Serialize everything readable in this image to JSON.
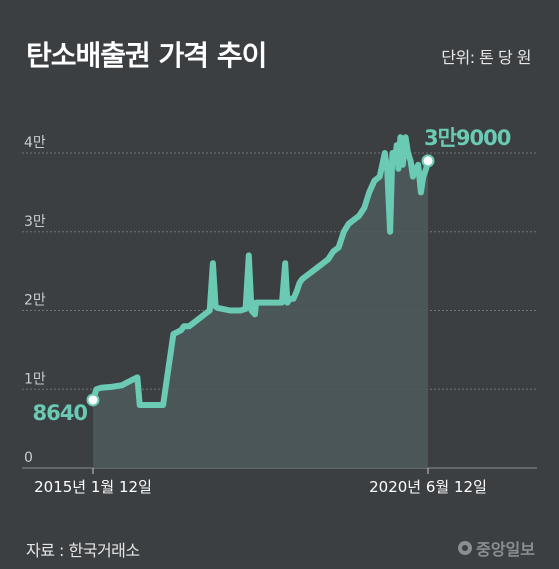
{
  "header": {
    "title": "탄소배출권 가격 추이",
    "unit": "단위: 톤 당 원"
  },
  "footer": {
    "source": "자료 : 한국거래소",
    "logo": "중앙일보"
  },
  "colors": {
    "line": "#6bcab4",
    "area": "#4e5a5c",
    "background": "#3b3f42",
    "grid": "#6f7376"
  },
  "chart_data": {
    "type": "area",
    "title": "탄소배출권 가격 추이",
    "xlabel": "",
    "ylabel": "",
    "ylim": [
      0,
      40000
    ],
    "xlim": [
      "2015-01-12",
      "2020-06-12"
    ],
    "y_ticks": [
      {
        "value": 0,
        "label": "0"
      },
      {
        "value": 10000,
        "label": "1만"
      },
      {
        "value": 20000,
        "label": "2만"
      },
      {
        "value": 30000,
        "label": "3만"
      },
      {
        "value": 40000,
        "label": "4만"
      }
    ],
    "x_ticks": [
      {
        "value": "2015-01-12",
        "label": "2015년 1월 12일"
      },
      {
        "value": "2020-06-12",
        "label": "2020년 6월 12일"
      }
    ],
    "grid": true,
    "annotations": [
      {
        "x": "2015-01-12",
        "y": 8640,
        "label": "8640"
      },
      {
        "x": "2020-06-12",
        "y": 39000,
        "label": "3만9000"
      }
    ],
    "series": [
      {
        "x": [
          "2015-01-12",
          "2015-02-01",
          "2015-03-01",
          "2015-05-01",
          "2015-07-01",
          "2015-09-01",
          "2015-10-01",
          "2015-10-15",
          "2015-11-01",
          "2016-01-01",
          "2016-02-01",
          "2016-03-01",
          "2016-05-01",
          "2016-06-15",
          "2016-07-01",
          "2016-08-01",
          "2016-09-01",
          "2016-10-01",
          "2016-11-01",
          "2016-12-01",
          "2016-12-20",
          "2017-01-05",
          "2017-01-20",
          "2017-02-15",
          "2017-04-01",
          "2017-05-01",
          "2017-06-01",
          "2017-07-01",
          "2017-07-20",
          "2017-08-05",
          "2017-08-25",
          "2017-09-01",
          "2017-11-01",
          "2017-12-01",
          "2018-01-01",
          "2018-02-01",
          "2018-02-20",
          "2018-03-05",
          "2018-03-20",
          "2018-04-10",
          "2018-04-30",
          "2018-05-15",
          "2018-06-01",
          "2018-07-01",
          "2018-08-01",
          "2018-09-01",
          "2018-10-01",
          "2018-11-01",
          "2018-12-01",
          "2019-01-01",
          "2019-02-01",
          "2019-03-01",
          "2019-04-01",
          "2019-05-01",
          "2019-06-01",
          "2019-07-01",
          "2019-08-01",
          "2019-09-01",
          "2019-10-01",
          "2019-10-15",
          "2019-11-01",
          "2019-11-15",
          "2019-12-01",
          "2019-12-10",
          "2019-12-20",
          "2020-01-01",
          "2020-01-15",
          "2020-02-01",
          "2020-02-15",
          "2020-03-01",
          "2020-03-15",
          "2020-04-01",
          "2020-04-15",
          "2020-05-01",
          "2020-05-15",
          "2020-06-01",
          "2020-06-12"
        ],
        "y": [
          8640,
          10000,
          10200,
          10300,
          10500,
          11200,
          11500,
          8000,
          8000,
          8000,
          8000,
          8000,
          17000,
          17500,
          18000,
          18000,
          18500,
          19000,
          19500,
          20000,
          26000,
          20500,
          20300,
          20200,
          20000,
          20000,
          20000,
          20200,
          27000,
          20000,
          19500,
          21000,
          21000,
          21000,
          21000,
          21000,
          26000,
          21000,
          21500,
          21500,
          22500,
          23500,
          24000,
          24500,
          25000,
          25500,
          26000,
          26500,
          27500,
          28000,
          30000,
          31000,
          31500,
          32000,
          33000,
          35000,
          36500,
          37000,
          40000,
          38000,
          30000,
          40000,
          39000,
          41000,
          38000,
          42000,
          38500,
          42000,
          40000,
          39000,
          37000,
          38000,
          38500,
          35000,
          37000,
          38000,
          39000
        ]
      }
    ]
  }
}
